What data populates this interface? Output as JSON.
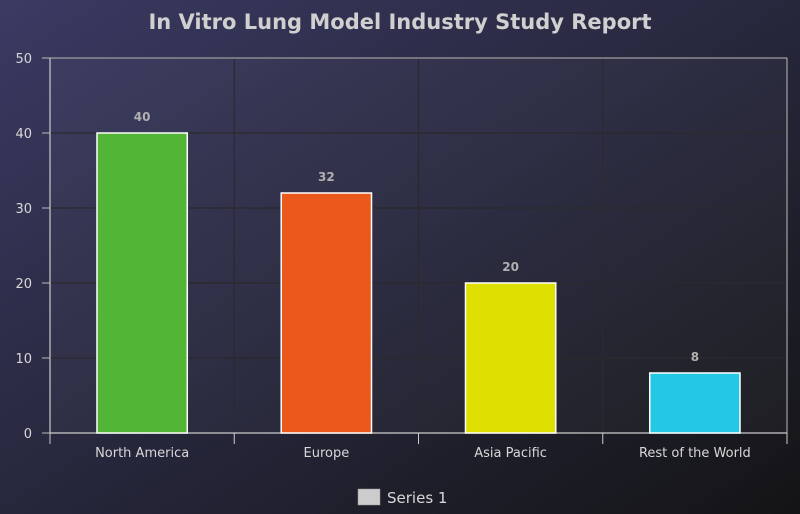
{
  "chart_data": {
    "type": "bar",
    "title": "In Vitro Lung Model Industry Study Report",
    "categories": [
      "North America",
      "Europe",
      "Asia Pacific",
      "Rest of the World"
    ],
    "series": [
      {
        "name": "Series 1",
        "values": [
          40,
          32,
          20,
          8
        ]
      }
    ],
    "bar_colors": [
      "#52b535",
      "#ec581c",
      "#dde000",
      "#24c8e4"
    ],
    "ylim": [
      0,
      50
    ],
    "yticks": [
      0,
      10,
      20,
      30,
      40,
      50
    ],
    "grid": true,
    "legend_placement": "bottom",
    "legend_swatch_color": "#cccccc",
    "background_colors": [
      "#3a3a63",
      "#1a1a1f"
    ],
    "text_color": "#d8d8d8",
    "data_label_color": "#b0b0b0"
  }
}
